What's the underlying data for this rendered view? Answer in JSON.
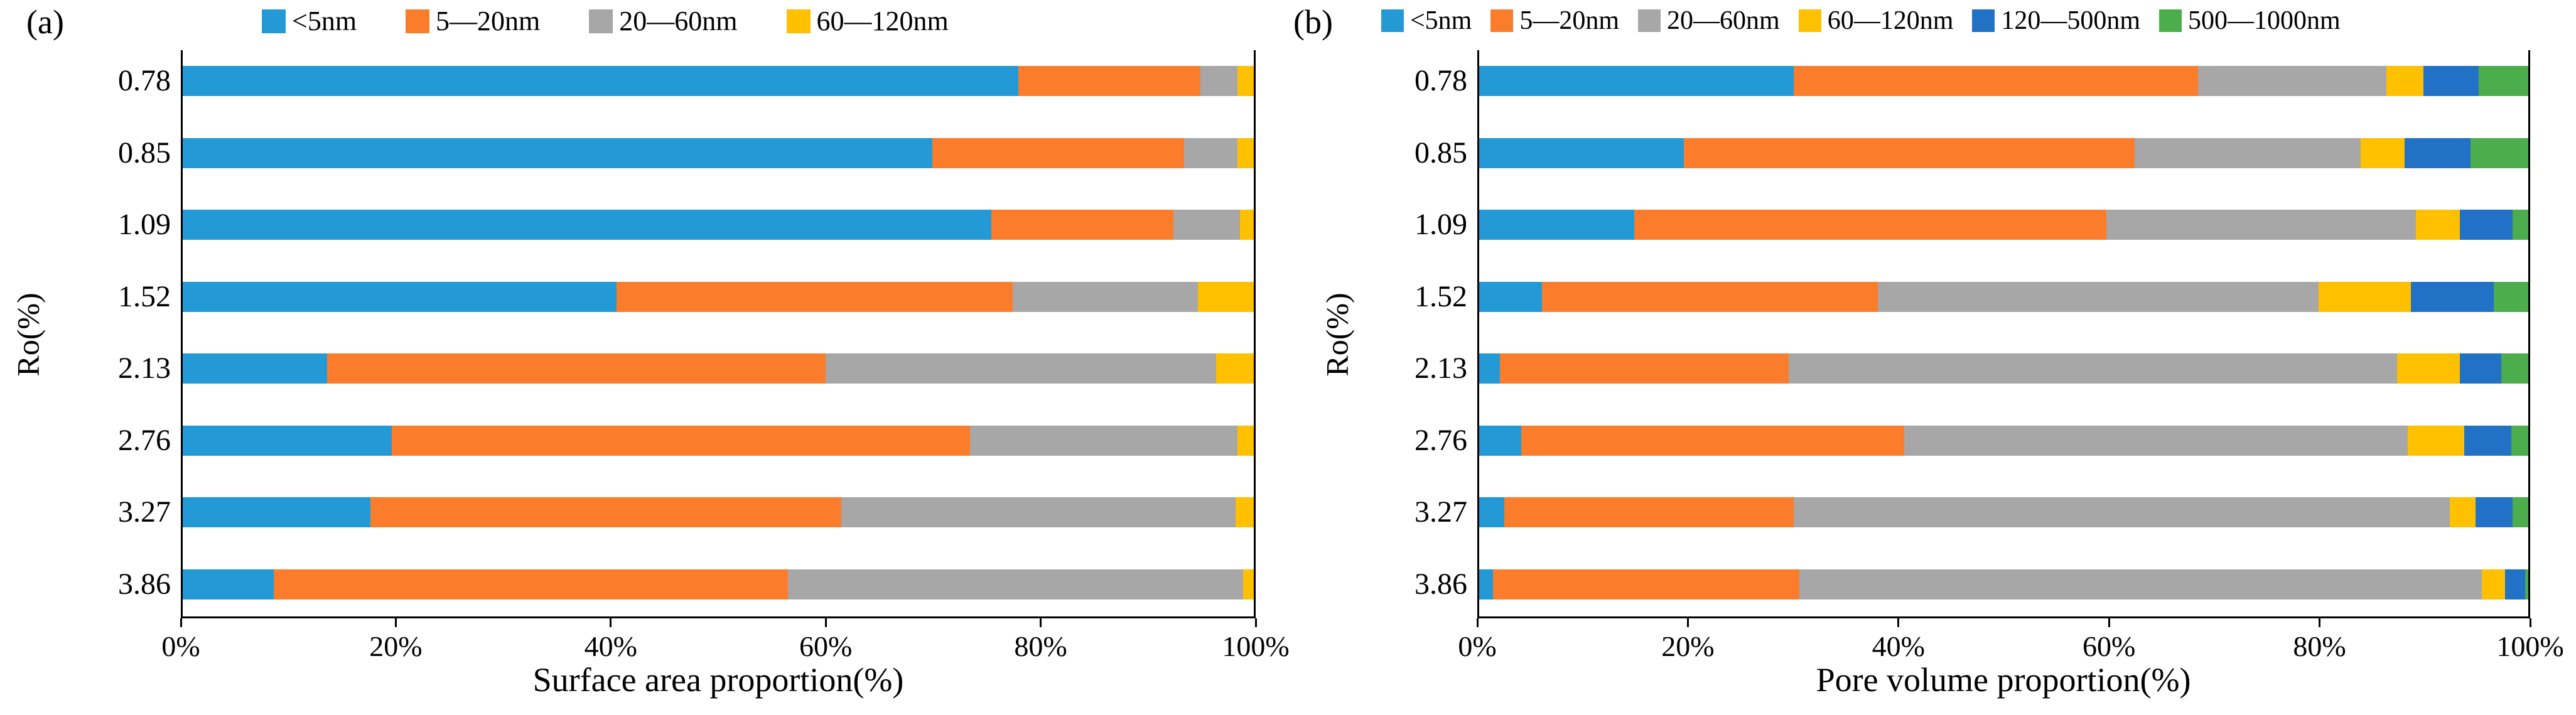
{
  "figure": {
    "panels": [
      {
        "label": "(a)"
      },
      {
        "label": "(b)"
      }
    ]
  },
  "chart_data": [
    {
      "type": "bar",
      "orientation": "horizontal",
      "stacked": true,
      "xlabel": "Surface area proportion(%)",
      "ylabel": "Ro(%)",
      "xlim": [
        0,
        100
      ],
      "x_tick_labels": [
        "0%",
        "20%",
        "40%",
        "60%",
        "80%",
        "100%"
      ],
      "legend_position": "top",
      "grid": false,
      "categories": [
        "0.78",
        "0.85",
        "1.09",
        "1.52",
        "2.13",
        "2.76",
        "3.27",
        "3.86"
      ],
      "series": [
        {
          "name": "<5nm",
          "color": "#2399D6",
          "values": [
            78.0,
            70.0,
            75.5,
            40.5,
            13.5,
            19.5,
            17.5,
            8.5
          ]
        },
        {
          "name": "5—20nm",
          "color": "#FB7D2B",
          "values": [
            17.0,
            23.5,
            17.0,
            37.0,
            46.5,
            54.0,
            44.0,
            48.0
          ]
        },
        {
          "name": "20—60nm",
          "color": "#A7A7A7",
          "values": [
            3.5,
            5.0,
            6.2,
            17.3,
            36.5,
            25.0,
            36.8,
            42.5
          ]
        },
        {
          "name": "60—120nm",
          "color": "#FFC000",
          "values": [
            1.5,
            1.5,
            1.3,
            5.2,
            3.5,
            1.5,
            1.7,
            1.0
          ]
        }
      ]
    },
    {
      "type": "bar",
      "orientation": "horizontal",
      "stacked": true,
      "xlabel": "Pore volume proportion(%)",
      "ylabel": "Ro(%)",
      "xlim": [
        0,
        100
      ],
      "x_tick_labels": [
        "0%",
        "20%",
        "40%",
        "60%",
        "80%",
        "100%"
      ],
      "legend_position": "top",
      "grid": false,
      "categories": [
        "0.78",
        "0.85",
        "1.09",
        "1.52",
        "2.13",
        "2.76",
        "3.27",
        "3.86"
      ],
      "series": [
        {
          "name": "<5nm",
          "color": "#2399D6",
          "values": [
            30.0,
            19.5,
            14.8,
            6.0,
            2.0,
            4.0,
            2.4,
            1.3
          ]
        },
        {
          "name": "5—20nm",
          "color": "#FB7D2B",
          "values": [
            38.5,
            43.0,
            45.0,
            32.0,
            27.5,
            36.5,
            27.6,
            29.2
          ]
        },
        {
          "name": "20—60nm",
          "color": "#A7A7A7",
          "values": [
            18.0,
            21.5,
            29.5,
            42.0,
            58.0,
            48.0,
            62.5,
            65.1
          ]
        },
        {
          "name": "60—120nm",
          "color": "#FFC000",
          "values": [
            3.5,
            4.2,
            4.2,
            8.8,
            6.0,
            5.4,
            2.5,
            2.2
          ]
        },
        {
          "name": "120—500nm",
          "color": "#2171C7",
          "values": [
            5.3,
            6.3,
            5.0,
            7.9,
            3.9,
            4.5,
            3.5,
            1.9
          ]
        },
        {
          "name": "500—1000nm",
          "color": "#4BAD4B",
          "values": [
            4.7,
            5.5,
            1.5,
            3.3,
            2.6,
            1.6,
            1.5,
            0.3
          ]
        }
      ]
    }
  ]
}
